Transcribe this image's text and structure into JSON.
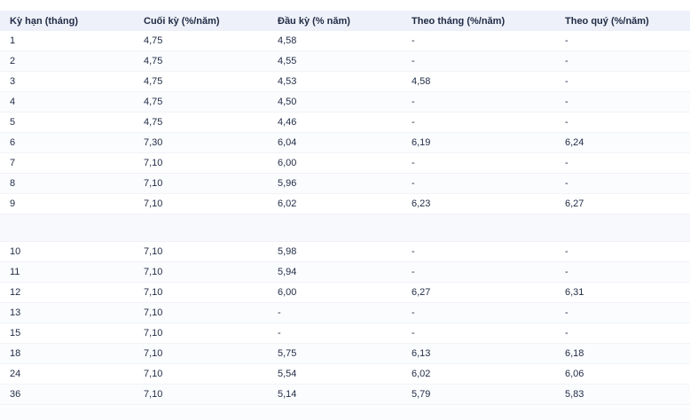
{
  "table": {
    "headers": [
      "Kỳ hạn (tháng)",
      "Cuối kỳ (%/năm)",
      "Đầu kỳ (% năm)",
      "Theo tháng (%/năm)",
      "Theo quý (%/năm)"
    ],
    "rows_group1": [
      [
        "1",
        "4,75",
        "4,58",
        "-",
        "-"
      ],
      [
        "2",
        "4,75",
        "4,55",
        "-",
        "-"
      ],
      [
        "3",
        "4,75",
        "4,53",
        "4,58",
        "-"
      ],
      [
        "4",
        "4,75",
        "4,50",
        "-",
        "-"
      ],
      [
        "5",
        "4,75",
        "4,46",
        "-",
        "-"
      ],
      [
        "6",
        "7,30",
        "6,04",
        "6,19",
        "6,24"
      ],
      [
        "7",
        "7,10",
        "6,00",
        "-",
        "-"
      ],
      [
        "8",
        "7,10",
        "5,96",
        "-",
        "-"
      ],
      [
        "9",
        "7,10",
        "6,02",
        "6,23",
        "6,27"
      ]
    ],
    "rows_group2": [
      [
        "10",
        "7,10",
        "5,98",
        "-",
        "-"
      ],
      [
        "11",
        "7,10",
        "5,94",
        "-",
        "-"
      ],
      [
        "12",
        "7,10",
        "6,00",
        "6,27",
        "6,31"
      ],
      [
        "13",
        "7,10",
        "-",
        "-",
        "-"
      ],
      [
        "15",
        "7,10",
        "-",
        "-",
        "-"
      ],
      [
        "18",
        "7,10",
        "5,75",
        "6,13",
        "6,18"
      ],
      [
        "24",
        "7,10",
        "5,54",
        "6,02",
        "6,06"
      ],
      [
        "36",
        "7,10",
        "5,14",
        "5,79",
        "5,83"
      ]
    ]
  },
  "colors": {
    "header_bg": "#eef1f9",
    "text": "#1f2a44"
  }
}
